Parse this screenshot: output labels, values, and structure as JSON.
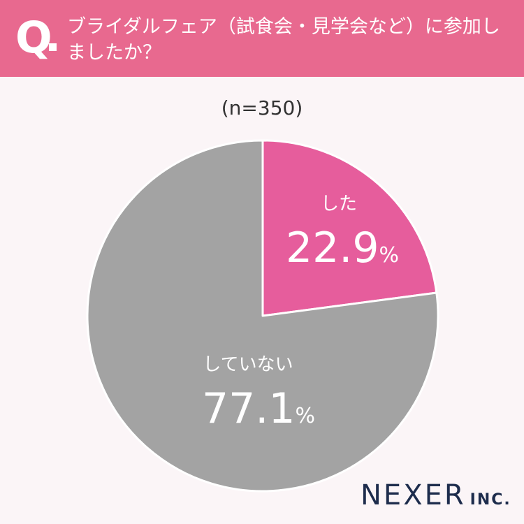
{
  "header": {
    "q_label": "Q",
    "question": "ブライダルフェア（試食会・見学会など）に参加しましたか？"
  },
  "sample_label": "(n=350)",
  "colors": {
    "header_bg": "#e8698f",
    "did": "#e65d9c",
    "did_not": "#a3a3a3"
  },
  "chart_data": {
    "type": "pie",
    "title": "ブライダルフェア（試食会・見学会など）に参加しましたか？",
    "slices": [
      {
        "label": "した",
        "value": 22.9,
        "value_text": "22.9",
        "unit": "%",
        "color": "#e65d9c"
      },
      {
        "label": "していない",
        "value": 77.1,
        "value_text": "77.1",
        "unit": "%",
        "color": "#a3a3a3"
      }
    ]
  },
  "logo": {
    "name": "NEXER",
    "suffix": "INC."
  }
}
